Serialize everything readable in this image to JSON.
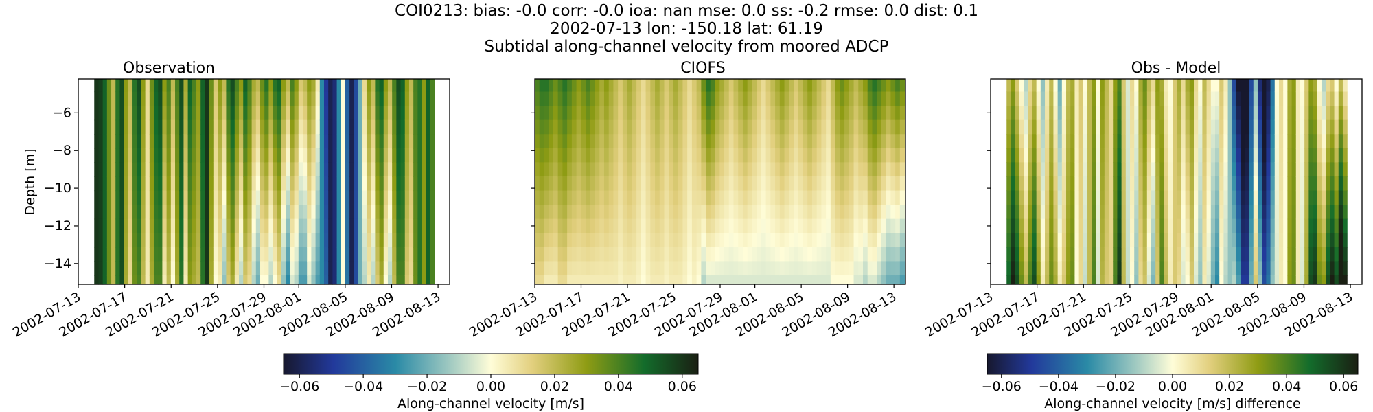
{
  "figure": {
    "title_lines": [
      "COI0213: bias: -0.0  corr: -0.0  ioa: nan  mse: 0.0  ss: -0.2  rmse: 0.0  dist: 0.1",
      "2002-07-13 lon: -150.18 lat: 61.19",
      "Subtidal along-channel velocity from moored ADCP"
    ]
  },
  "colormap": {
    "name": "delta-like diverging",
    "stops": [
      {
        "t": 0.0,
        "color": "#17182e"
      },
      {
        "t": 0.12,
        "color": "#22399b"
      },
      {
        "t": 0.27,
        "color": "#2a8aa6"
      },
      {
        "t": 0.4,
        "color": "#9fc9c1"
      },
      {
        "t": 0.5,
        "color": "#fffdd8"
      },
      {
        "t": 0.6,
        "color": "#e2cf7e"
      },
      {
        "t": 0.73,
        "color": "#8f9c14"
      },
      {
        "t": 0.87,
        "color": "#136c2b"
      },
      {
        "t": 1.0,
        "color": "#1a1f13"
      }
    ]
  },
  "chart_data": [
    {
      "type": "heatmap",
      "title": "Observation",
      "xlabel": "",
      "ylabel": "Depth [m]",
      "xlim": [
        "2002-07-13",
        "2002-08-14"
      ],
      "ylim": [
        -15.1,
        -4.2
      ],
      "x_ticks": [
        "2002-07-13",
        "2002-07-17",
        "2002-07-21",
        "2002-07-25",
        "2002-07-29",
        "2002-08-01",
        "2002-08-05",
        "2002-08-09",
        "2002-08-13"
      ],
      "y_ticks": [
        -6,
        -8,
        -10,
        -12,
        -14
      ],
      "data_x_range": [
        "2002-07-14T09:00",
        "2002-08-12T17:00"
      ],
      "depth_bins": [
        -4.5,
        -5.25,
        -6.0,
        -6.75,
        -7.5,
        -8.25,
        -9.0,
        -9.75,
        -10.5,
        -11.25,
        -12.0,
        -12.75,
        -13.5,
        -14.25,
        -15.0
      ],
      "surface_values_m_s": [
        0.06,
        0.058,
        0.05,
        0.035,
        0.02,
        0.045,
        0.055,
        0.03,
        0.02,
        0.045,
        0.055,
        0.03,
        0.01,
        0.035,
        0.05,
        0.055,
        0.03,
        0.04,
        0.02,
        0.04,
        0.055,
        0.025,
        0.05,
        0.04,
        0.03,
        0.05,
        0.06,
        0.035,
        0.015,
        0.03,
        0.02,
        0.045,
        0.055,
        0.04,
        0.03,
        0.05,
        0.04,
        0.025,
        0.02,
        0.035,
        0.045,
        0.03,
        0.045,
        0.05,
        0.03,
        0.02,
        0.04,
        0.03,
        0.015,
        0.02,
        0.03,
        0.025,
        0.005,
        -0.03,
        -0.05,
        -0.06,
        -0.055,
        -0.03,
        0.0,
        -0.04,
        -0.06,
        -0.045,
        -0.02,
        0.01,
        0.03,
        0.02,
        0.045,
        0.05,
        0.03,
        0.02,
        0.04,
        0.055,
        0.05,
        0.03,
        0.02,
        0.04,
        0.045,
        0.03,
        0.05,
        0.04
      ],
      "change_with_depth_m_s": [
        0.0,
        0.0,
        0.0,
        0.0,
        0.0,
        0.0,
        0.0,
        -0.005,
        -0.01,
        -0.01,
        -0.015,
        -0.01,
        -0.005,
        -0.01,
        -0.01,
        -0.015,
        -0.025,
        -0.02,
        -0.02,
        -0.015,
        -0.01,
        -0.02,
        -0.02,
        -0.015,
        -0.01,
        -0.005,
        0.0,
        -0.01,
        -0.015,
        -0.025,
        -0.035,
        -0.03,
        -0.03,
        -0.035,
        -0.04,
        -0.035,
        -0.03,
        -0.035,
        -0.04,
        -0.035,
        -0.045,
        -0.04,
        -0.045,
        -0.04,
        -0.045,
        -0.05,
        -0.045,
        -0.04,
        -0.04,
        -0.045,
        -0.035,
        -0.04,
        -0.03,
        0.0,
        0.01,
        0.0,
        0.0,
        0.0,
        0.0,
        0.005,
        0.0,
        0.0,
        0.0,
        -0.02,
        -0.025,
        -0.03,
        -0.03,
        -0.025,
        -0.03,
        -0.03,
        -0.02,
        -0.015,
        -0.01,
        -0.015,
        -0.01,
        -0.005,
        0.0,
        0.0,
        0.0,
        0.0
      ],
      "colorbar": {
        "label": "Along-channel velocity [m/s]",
        "range": [
          -0.065,
          0.065
        ],
        "ticks": [
          "−0.06",
          "−0.04",
          "−0.02",
          "0.00",
          "0.02",
          "0.04",
          "0.06"
        ],
        "tick_values": [
          -0.06,
          -0.04,
          -0.02,
          0.0,
          0.02,
          0.04,
          0.06
        ],
        "shared_with": "CIOFS",
        "orientation": "horizontal"
      }
    },
    {
      "type": "heatmap",
      "title": "CIOFS",
      "xlabel": "",
      "ylabel": "",
      "xlim": [
        "2002-07-13",
        "2002-08-14"
      ],
      "ylim": [
        -15.1,
        -4.2
      ],
      "x_ticks": [
        "2002-07-13",
        "2002-07-17",
        "2002-07-21",
        "2002-07-25",
        "2002-07-29",
        "2002-08-01",
        "2002-08-05",
        "2002-08-09",
        "2002-08-13"
      ],
      "y_ticks": [
        -6,
        -8,
        -10,
        -12,
        -14
      ],
      "data_x_range": [
        "2002-07-13T00:00",
        "2002-08-13T22:00"
      ],
      "depth_bins": [
        -4.5,
        -5.25,
        -6.0,
        -6.75,
        -7.5,
        -8.25,
        -9.0,
        -9.75,
        -10.5,
        -11.25,
        -12.0,
        -12.75,
        -13.5,
        -14.25,
        -15.0
      ],
      "surface_values_m_s": [
        0.04,
        0.045,
        0.045,
        0.04,
        0.035,
        0.04,
        0.045,
        0.04,
        0.035,
        0.03,
        0.035,
        0.04,
        0.035,
        0.03,
        0.025,
        0.03,
        0.025,
        0.02,
        0.015,
        0.02,
        0.025,
        0.02,
        0.015,
        0.01,
        0.015,
        0.02,
        0.025,
        0.02,
        0.015,
        0.02,
        0.025,
        0.02,
        0.015,
        0.01,
        0.015,
        0.02,
        0.035,
        0.045,
        0.04,
        0.03,
        0.025,
        0.02,
        0.015,
        0.02,
        0.025,
        0.03,
        0.025,
        0.02,
        0.015,
        0.01,
        0.015,
        0.02,
        0.025,
        0.03,
        0.025,
        0.02,
        0.015,
        0.02,
        0.025,
        0.03,
        0.025,
        0.02,
        0.015,
        0.01,
        0.02,
        0.03,
        0.035,
        0.03,
        0.025,
        0.02,
        0.025,
        0.03,
        0.04,
        0.045,
        0.04,
        0.035,
        0.03,
        0.035,
        0.04,
        0.035
      ],
      "change_with_depth_m_s": [
        -0.03,
        -0.035,
        -0.04,
        -0.035,
        -0.03,
        -0.03,
        -0.035,
        -0.035,
        -0.03,
        -0.025,
        -0.03,
        -0.035,
        -0.03,
        -0.025,
        -0.02,
        -0.025,
        -0.02,
        -0.015,
        -0.012,
        -0.015,
        -0.02,
        -0.015,
        -0.012,
        -0.01,
        -0.012,
        -0.015,
        -0.02,
        -0.015,
        -0.012,
        -0.015,
        -0.02,
        -0.015,
        -0.012,
        -0.01,
        -0.012,
        -0.02,
        -0.045,
        -0.05,
        -0.045,
        -0.035,
        -0.03,
        -0.025,
        -0.02,
        -0.025,
        -0.03,
        -0.035,
        -0.03,
        -0.025,
        -0.02,
        -0.015,
        -0.02,
        -0.025,
        -0.03,
        -0.035,
        -0.03,
        -0.025,
        -0.02,
        -0.025,
        -0.03,
        -0.035,
        -0.03,
        -0.025,
        -0.02,
        -0.015,
        -0.02,
        -0.03,
        -0.035,
        -0.03,
        -0.025,
        -0.025,
        -0.03,
        -0.04,
        -0.045,
        -0.05,
        -0.05,
        -0.05,
        -0.05,
        -0.055,
        -0.06,
        -0.06
      ]
    },
    {
      "type": "heatmap",
      "title": "Obs - Model",
      "xlabel": "",
      "ylabel": "",
      "xlim": [
        "2002-07-13",
        "2002-08-14"
      ],
      "ylim": [
        -15.1,
        -4.2
      ],
      "x_ticks": [
        "2002-07-13",
        "2002-07-17",
        "2002-07-21",
        "2002-07-25",
        "2002-07-29",
        "2002-08-01",
        "2002-08-05",
        "2002-08-09",
        "2002-08-13"
      ],
      "y_ticks": [
        -6,
        -8,
        -10,
        -12,
        -14
      ],
      "data_x_range": [
        "2002-07-14T09:00",
        "2002-08-12T17:00"
      ],
      "depth_bins": [
        -4.5,
        -5.25,
        -6.0,
        -6.75,
        -7.5,
        -8.25,
        -9.0,
        -9.75,
        -10.5,
        -11.25,
        -12.0,
        -12.75,
        -13.5,
        -14.25,
        -15.0
      ],
      "surface_values_m_s": [
        0.02,
        0.03,
        0.015,
        0.0,
        -0.01,
        0.01,
        0.02,
        0.0,
        -0.015,
        0.005,
        0.02,
        0.0,
        -0.02,
        0.0,
        0.02,
        0.025,
        0.005,
        0.015,
        0.0,
        0.02,
        0.03,
        0.0,
        0.03,
        0.02,
        0.01,
        0.03,
        0.04,
        0.015,
        -0.005,
        0.01,
        0.0,
        0.025,
        0.035,
        0.02,
        0.01,
        0.03,
        0.025,
        0.005,
        0.0,
        0.015,
        0.025,
        0.01,
        0.025,
        0.03,
        0.01,
        0.0,
        0.02,
        0.01,
        0.0,
        0.0,
        0.015,
        0.005,
        -0.015,
        -0.045,
        -0.065,
        -0.075,
        -0.07,
        -0.045,
        -0.015,
        -0.055,
        -0.075,
        -0.06,
        -0.035,
        0.0,
        0.01,
        0.0,
        0.025,
        0.03,
        0.005,
        0.0,
        0.015,
        0.03,
        0.025,
        0.0,
        -0.01,
        0.01,
        0.015,
        0.0,
        0.02,
        0.005
      ],
      "change_with_depth_m_s": [
        0.03,
        0.035,
        0.04,
        0.035,
        0.03,
        0.03,
        0.035,
        0.03,
        0.02,
        0.015,
        0.015,
        0.025,
        0.025,
        0.015,
        0.01,
        0.01,
        -0.005,
        -0.005,
        -0.008,
        0.0,
        0.01,
        -0.005,
        -0.008,
        -0.005,
        0.002,
        0.01,
        0.02,
        0.005,
        -0.003,
        -0.01,
        -0.015,
        -0.015,
        -0.018,
        -0.025,
        -0.028,
        -0.015,
        0.015,
        0.015,
        0.005,
        0.0,
        -0.015,
        -0.015,
        -0.025,
        -0.015,
        -0.015,
        -0.015,
        -0.015,
        -0.015,
        -0.02,
        -0.03,
        -0.015,
        -0.015,
        0.0,
        0.035,
        0.04,
        0.025,
        0.02,
        0.025,
        0.03,
        0.04,
        0.03,
        0.025,
        0.02,
        -0.005,
        -0.005,
        0.0,
        0.005,
        0.005,
        0.0,
        -0.005,
        0.01,
        0.025,
        0.035,
        0.035,
        0.04,
        0.045,
        0.05,
        0.055,
        0.06,
        0.06
      ],
      "colorbar": {
        "label": "Along-channel velocity [m/s] difference",
        "range": [
          -0.065,
          0.065
        ],
        "ticks": [
          "−0.06",
          "−0.04",
          "−0.02",
          "0.00",
          "0.02",
          "0.04",
          "0.06"
        ],
        "tick_values": [
          -0.06,
          -0.04,
          -0.02,
          0.0,
          0.02,
          0.04,
          0.06
        ],
        "orientation": "horizontal"
      }
    }
  ]
}
